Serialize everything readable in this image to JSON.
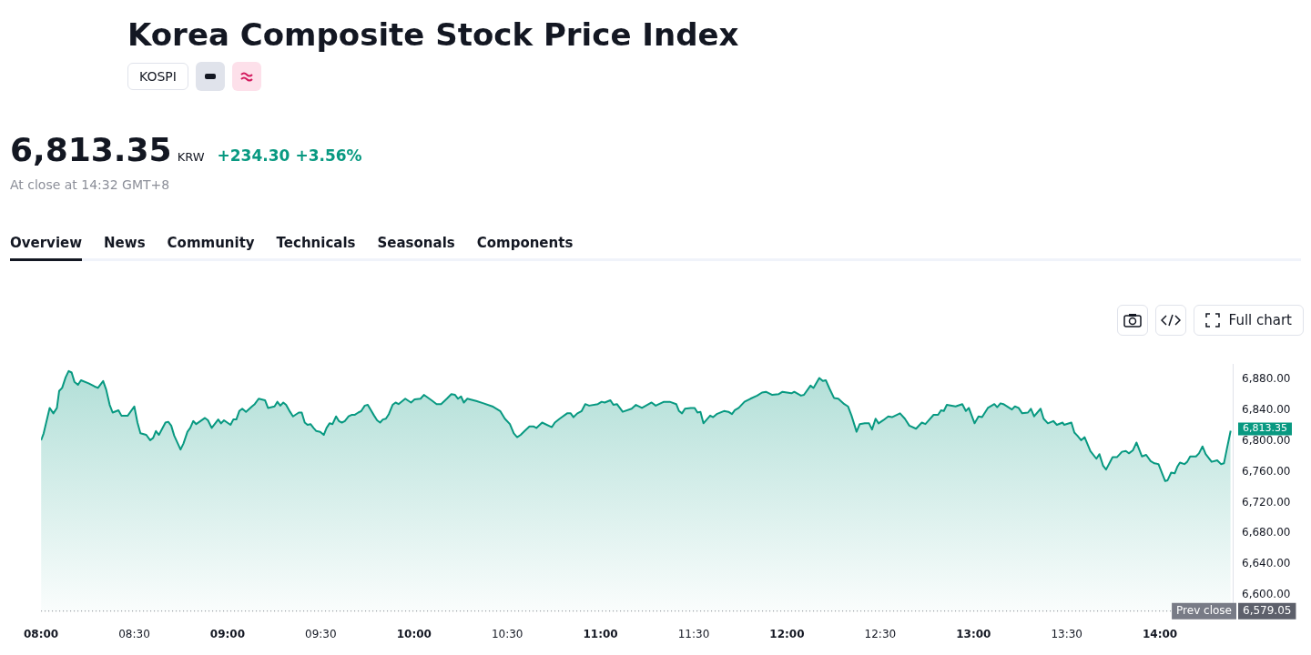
{
  "chart_data": {
    "type": "area",
    "title": "Korea Composite Stock Price Index",
    "subtitle": "KOSPI",
    "annotations": [
      "6,813.35",
      "KRW",
      "+234.30",
      "+3.56%",
      "At close at 14:32 GMT+8",
      "Overview",
      "News",
      "Community",
      "Technicals",
      "Seasonals",
      "Components",
      "Full chart",
      "6,579.05",
      {
        "text": "6,813.35",
        "x": 14.379,
        "y": 6813.35
      }
    ],
    "x": [
      8.0,
      8.014,
      8.046,
      8.066,
      8.085,
      8.097,
      8.113,
      8.132,
      8.148,
      8.164,
      8.179,
      8.198,
      8.214,
      8.255,
      8.286,
      8.305,
      8.333,
      8.349,
      8.368,
      8.384,
      8.415,
      8.431,
      8.465,
      8.5,
      8.517,
      8.533,
      8.564,
      8.585,
      8.601,
      8.616,
      8.632,
      8.667,
      8.682,
      8.698,
      8.714,
      8.748,
      8.764,
      8.785,
      8.8,
      8.816,
      8.832,
      8.879,
      8.895,
      8.915,
      8.95,
      8.965,
      8.981,
      9.016,
      9.031,
      9.047,
      9.063,
      9.079,
      9.099,
      9.131,
      9.146,
      9.167,
      9.201,
      9.217,
      9.252,
      9.267,
      9.283,
      9.299,
      9.314,
      9.335,
      9.351,
      9.382,
      9.398,
      9.414,
      9.429,
      9.445,
      9.461,
      9.476,
      9.497,
      9.516,
      9.531,
      9.547,
      9.563,
      9.582,
      9.597,
      9.613,
      9.629,
      9.649,
      9.665,
      9.681,
      9.701,
      9.717,
      9.736,
      9.752,
      9.786,
      9.802,
      9.818,
      9.833,
      9.849,
      9.865,
      9.885,
      9.901,
      9.917,
      9.953,
      9.984,
      10.003,
      10.035,
      10.053,
      10.094,
      10.121,
      10.145,
      10.176,
      10.2,
      10.22,
      10.236,
      10.252,
      10.267,
      10.286,
      10.333,
      10.373,
      10.42,
      10.462,
      10.487,
      10.514,
      10.535,
      10.553,
      10.572,
      10.593,
      10.619,
      10.64,
      10.656,
      10.687,
      10.739,
      10.755,
      10.781,
      10.821,
      10.84,
      10.855,
      10.876,
      10.899,
      10.918,
      10.939,
      10.986,
      11.006,
      11.022,
      11.053,
      11.069,
      11.088,
      11.119,
      11.167,
      11.19,
      11.222,
      11.274,
      11.296,
      11.34,
      11.371,
      11.406,
      11.421,
      11.437,
      11.453,
      11.484,
      11.505,
      11.52,
      11.536,
      11.552,
      11.588,
      11.604,
      11.623,
      11.662,
      11.686,
      11.705,
      11.72,
      11.741,
      11.772,
      11.804,
      11.84,
      11.866,
      11.887,
      11.921,
      11.956,
      11.976,
      12.024,
      12.039,
      12.075,
      12.091,
      12.126,
      12.142,
      12.173,
      12.192,
      12.208,
      12.228,
      12.252,
      12.275,
      12.307,
      12.327,
      12.346,
      12.373,
      12.39,
      12.417,
      12.44,
      12.456,
      12.475,
      12.491,
      12.516,
      12.543,
      12.563,
      12.606,
      12.632,
      12.656,
      12.692,
      12.723,
      12.742,
      12.786,
      12.81,
      12.826,
      12.841,
      12.857,
      12.904,
      12.94,
      12.959,
      12.975,
      13.006,
      13.027,
      13.046,
      13.077,
      13.112,
      13.127,
      13.145,
      13.16,
      13.206,
      13.222,
      13.242,
      13.261,
      13.292,
      13.308,
      13.325,
      13.36,
      13.376,
      13.399,
      13.428,
      13.447,
      13.478,
      13.486,
      13.525,
      13.541,
      13.557,
      13.577,
      13.596,
      13.627,
      13.659,
      13.675,
      13.695,
      13.711,
      13.746,
      13.769,
      13.796,
      13.817,
      13.833,
      13.855,
      13.874,
      13.903,
      13.926,
      13.95,
      13.97,
      13.992,
      14.013,
      14.028,
      14.041,
      14.06,
      14.079,
      14.094,
      14.107,
      14.131,
      14.146,
      14.162,
      14.193,
      14.209,
      14.228,
      14.245,
      14.277,
      14.307,
      14.327,
      14.343,
      14.358,
      14.379
    ],
    "series": [
      {
        "color": "#089981",
        "values": [
          6801,
          6810,
          6843,
          6836,
          6843,
          6865,
          6869,
          6883,
          6891,
          6889,
          6877,
          6873,
          6879,
          6875,
          6871,
          6869,
          6878,
          6867,
          6847,
          6837,
          6840,
          6833,
          6833,
          6845,
          6824,
          6810,
          6808,
          6801,
          6804,
          6813,
          6808,
          6824,
          6825,
          6820,
          6807,
          6789,
          6797,
          6812,
          6817,
          6826,
          6822,
          6830,
          6827,
          6817,
          6828,
          6823,
          6827,
          6821,
          6828,
          6828,
          6839,
          6842,
          6838,
          6845,
          6848,
          6855,
          6853,
          6843,
          6845,
          6851,
          6846,
          6850,
          6847,
          6838,
          6832,
          6837,
          6837,
          6824,
          6821,
          6822,
          6817,
          6813,
          6812,
          6808,
          6817,
          6823,
          6822,
          6832,
          6826,
          6824,
          6826,
          6832,
          6834,
          6834,
          6837,
          6839,
          6846,
          6847,
          6833,
          6827,
          6824,
          6828,
          6829,
          6835,
          6847,
          6850,
          6848,
          6855,
          6850,
          6854,
          6855,
          6860,
          6853,
          6848,
          6848,
          6855,
          6861,
          6860,
          6855,
          6858,
          6850,
          6855,
          6852,
          6849,
          6845,
          6839,
          6829,
          6822,
          6810,
          6805,
          6808,
          6813,
          6819,
          6819,
          6817,
          6824,
          6818,
          6824,
          6829,
          6836,
          6836,
          6831,
          6836,
          6839,
          6848,
          6846,
          6848,
          6851,
          6850,
          6853,
          6847,
          6848,
          6838,
          6842,
          6847,
          6843,
          6850,
          6846,
          6851,
          6851,
          6848,
          6839,
          6836,
          6842,
          6843,
          6843,
          6837,
          6838,
          6823,
          6833,
          6831,
          6835,
          6839,
          6838,
          6835,
          6840,
          6843,
          6851,
          6855,
          6859,
          6863,
          6864,
          6860,
          6861,
          6864,
          6862,
          6864,
          6859,
          6860,
          6872,
          6869,
          6882,
          6878,
          6879,
          6868,
          6856,
          6855,
          6848,
          6845,
          6833,
          6812,
          6822,
          6823,
          6823,
          6815,
          6829,
          6823,
          6827,
          6832,
          6831,
          6836,
          6829,
          6820,
          6816,
          6824,
          6822,
          6834,
          6834,
          6840,
          6839,
          6847,
          6845,
          6848,
          6839,
          6843,
          6823,
          6832,
          6831,
          6843,
          6848,
          6844,
          6849,
          6848,
          6841,
          6845,
          6843,
          6836,
          6837,
          6842,
          6832,
          6842,
          6829,
          6823,
          6826,
          6821,
          6824,
          6821,
          6824,
          6811,
          6807,
          6801,
          6805,
          6787,
          6777,
          6783,
          6768,
          6763,
          6779,
          6779,
          6786,
          6787,
          6784,
          6788,
          6798,
          6780,
          6782,
          6774,
          6771,
          6770,
          6757,
          6748,
          6749,
          6759,
          6758,
          6767,
          6772,
          6770,
          6773,
          6780,
          6780,
          6784,
          6793,
          6783,
          6773,
          6775,
          6770,
          6771,
          6789,
          6813.35
        ]
      }
    ],
    "xlim": [
      8,
      14.39
    ],
    "xticks": [
      {
        "value": 8,
        "label": "08:00"
      },
      {
        "value": 8.5,
        "label": "08:30"
      },
      {
        "value": 9,
        "label": "09:00"
      },
      {
        "value": 9.5,
        "label": "09:30"
      },
      {
        "value": 10,
        "label": "10:00"
      },
      {
        "value": 10.5,
        "label": "10:30"
      },
      {
        "value": 11,
        "label": "11:00"
      },
      {
        "value": 11.5,
        "label": "11:30"
      },
      {
        "value": 12,
        "label": "12:00"
      },
      {
        "value": 12.5,
        "label": "12:30"
      },
      {
        "value": 13,
        "label": "13:00"
      },
      {
        "value": 13.5,
        "label": "13:30"
      },
      {
        "value": 14,
        "label": "14:00"
      }
    ],
    "ylim": [
      6578,
      6900
    ],
    "yticks": [
      {
        "value": 6600,
        "label": "6,600.00"
      },
      {
        "value": 6640,
        "label": "6,640.00"
      },
      {
        "value": 6680,
        "label": "6,680.00"
      },
      {
        "value": 6720,
        "label": "6,720.00"
      },
      {
        "value": 6760,
        "label": "6,760.00"
      },
      {
        "value": 6800,
        "label": "6,800.00"
      },
      {
        "value": 6840,
        "label": "6,840.00"
      },
      {
        "value": 6880,
        "label": "6,880.00"
      }
    ],
    "ref_lines": [
      {
        "axis": "y",
        "value": 6579.05,
        "label": "Prev close",
        "color": "#787b86",
        "line_style": "dotted"
      }
    ],
    "grid": false,
    "legend": false,
    "marker": "none",
    "line_style": "solid"
  }
}
